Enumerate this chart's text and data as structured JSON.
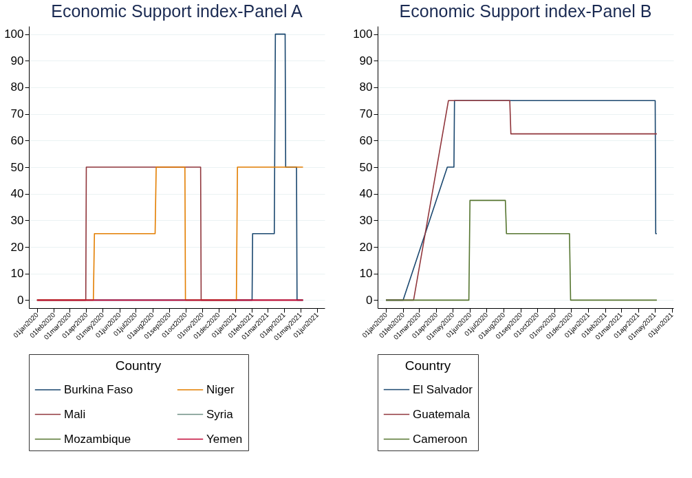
{
  "chart_data": [
    {
      "type": "line",
      "title": "Economic Support index-Panel A",
      "legend_title": "Country",
      "legend": "bottom",
      "grid": "y",
      "xlim": [
        "2019-12-17",
        "2021-06-15"
      ],
      "ylim": [
        -3,
        103
      ],
      "yticks": [
        0,
        10,
        20,
        30,
        40,
        50,
        60,
        70,
        80,
        90,
        100
      ],
      "xticks": [
        {
          "value": "2020-01-01",
          "label": "01jan2020"
        },
        {
          "value": "2020-02-01",
          "label": "01feb2020"
        },
        {
          "value": "2020-03-01",
          "label": "01mar2020"
        },
        {
          "value": "2020-04-01",
          "label": "01apr2020"
        },
        {
          "value": "2020-05-01",
          "label": "01may2020"
        },
        {
          "value": "2020-06-01",
          "label": "01jun2020"
        },
        {
          "value": "2020-07-01",
          "label": "01jul2020"
        },
        {
          "value": "2020-08-01",
          "label": "01aug2020"
        },
        {
          "value": "2020-09-01",
          "label": "01sep2020"
        },
        {
          "value": "2020-10-01",
          "label": "01oct2020"
        },
        {
          "value": "2020-11-01",
          "label": "01nov2020"
        },
        {
          "value": "2020-12-01",
          "label": "01dec2020"
        },
        {
          "value": "2021-01-01",
          "label": "01jan2021"
        },
        {
          "value": "2021-02-01",
          "label": "01feb2021"
        },
        {
          "value": "2021-03-01",
          "label": "01mar2021"
        },
        {
          "value": "2021-04-01",
          "label": "01apr2021"
        },
        {
          "value": "2021-05-01",
          "label": "01may2021"
        },
        {
          "value": "2021-06-01",
          "label": "01jun2021"
        }
      ],
      "series": [
        {
          "name": "Burkina Faso",
          "color": "#1a476f",
          "x": [
            "2020-01-01",
            "2021-02-01",
            "2021-02-02",
            "2021-03-14",
            "2021-03-16",
            "2021-04-03",
            "2021-04-04",
            "2021-04-24",
            "2021-04-25",
            "2021-05-06"
          ],
          "values": [
            0,
            0,
            25,
            25,
            100,
            100,
            50,
            50,
            0,
            0
          ]
        },
        {
          "name": "Mali",
          "color": "#90353b",
          "x": [
            "2020-01-01",
            "2020-03-31",
            "2020-04-01",
            "2020-10-29",
            "2020-10-30",
            "2021-05-06"
          ],
          "values": [
            0,
            0,
            50,
            50,
            0,
            0
          ]
        },
        {
          "name": "Mozambique",
          "color": "#55752f"
        },
        {
          "name": "Niger",
          "color": "#e37e00",
          "x": [
            "2020-01-01",
            "2020-04-14",
            "2020-04-16",
            "2020-08-06",
            "2020-08-08",
            "2020-09-30",
            "2020-10-01",
            "2021-01-03",
            "2021-01-05",
            "2021-05-06"
          ],
          "values": [
            0,
            0,
            25,
            25,
            50,
            50,
            0,
            0,
            50,
            50
          ]
        },
        {
          "name": "Syria",
          "color": "#6e8e84"
        },
        {
          "name": "Yemen",
          "color": "#c10534",
          "x": [
            "2020-01-01",
            "2021-05-06"
          ],
          "values": [
            0,
            0
          ]
        }
      ]
    },
    {
      "type": "line",
      "title": "Economic Support index-Panel B",
      "legend_title": "Country",
      "legend": "bottom",
      "grid": "y",
      "xlim": [
        "2019-12-17",
        "2021-06-04"
      ],
      "ylim": [
        -3,
        103
      ],
      "yticks": [
        0,
        10,
        20,
        30,
        40,
        50,
        60,
        70,
        80,
        90,
        100
      ],
      "xticks": [
        {
          "value": "2020-01-01",
          "label": "01jan2020"
        },
        {
          "value": "2020-02-01",
          "label": "01feb2020"
        },
        {
          "value": "2020-03-01",
          "label": "01mar2020"
        },
        {
          "value": "2020-04-01",
          "label": "01apr2020"
        },
        {
          "value": "2020-05-01",
          "label": "01may2020"
        },
        {
          "value": "2020-06-01",
          "label": "01jun2020"
        },
        {
          "value": "2020-07-01",
          "label": "01jul2020"
        },
        {
          "value": "2020-08-01",
          "label": "01aug2020"
        },
        {
          "value": "2020-09-01",
          "label": "01sep2020"
        },
        {
          "value": "2020-10-01",
          "label": "01oct2020"
        },
        {
          "value": "2020-11-01",
          "label": "01nov2020"
        },
        {
          "value": "2020-12-01",
          "label": "01dec2020"
        },
        {
          "value": "2021-01-01",
          "label": "01jan2021"
        },
        {
          "value": "2021-02-01",
          "label": "01feb2021"
        },
        {
          "value": "2021-03-01",
          "label": "01mar2021"
        },
        {
          "value": "2021-04-01",
          "label": "01apr2021"
        },
        {
          "value": "2021-05-01",
          "label": "01may2021"
        },
        {
          "value": "2021-06-01",
          "label": "01jun2021"
        }
      ],
      "series": [
        {
          "name": "El Salvador",
          "color": "#1a476f",
          "x": [
            "2020-01-01",
            "2020-02-01",
            "2020-04-21",
            "2020-05-03",
            "2020-05-04",
            "2021-05-02",
            "2021-05-03",
            "2021-05-05"
          ],
          "values": [
            0,
            0,
            50,
            50,
            75,
            75,
            25,
            25
          ]
        },
        {
          "name": "Guatemala",
          "color": "#90353b",
          "x": [
            "2020-01-01",
            "2020-02-20",
            "2020-04-23",
            "2020-08-12",
            "2020-08-14",
            "2021-05-05"
          ],
          "values": [
            0,
            0,
            75,
            75,
            62.5,
            62.5
          ]
        },
        {
          "name": "Cameroon",
          "color": "#55752f",
          "x": [
            "2020-01-01",
            "2020-05-30",
            "2020-06-01",
            "2020-08-04",
            "2020-08-06",
            "2020-11-28",
            "2020-11-30",
            "2021-05-05"
          ],
          "values": [
            0,
            0,
            37.5,
            37.5,
            25,
            25,
            0,
            0
          ]
        }
      ]
    }
  ]
}
